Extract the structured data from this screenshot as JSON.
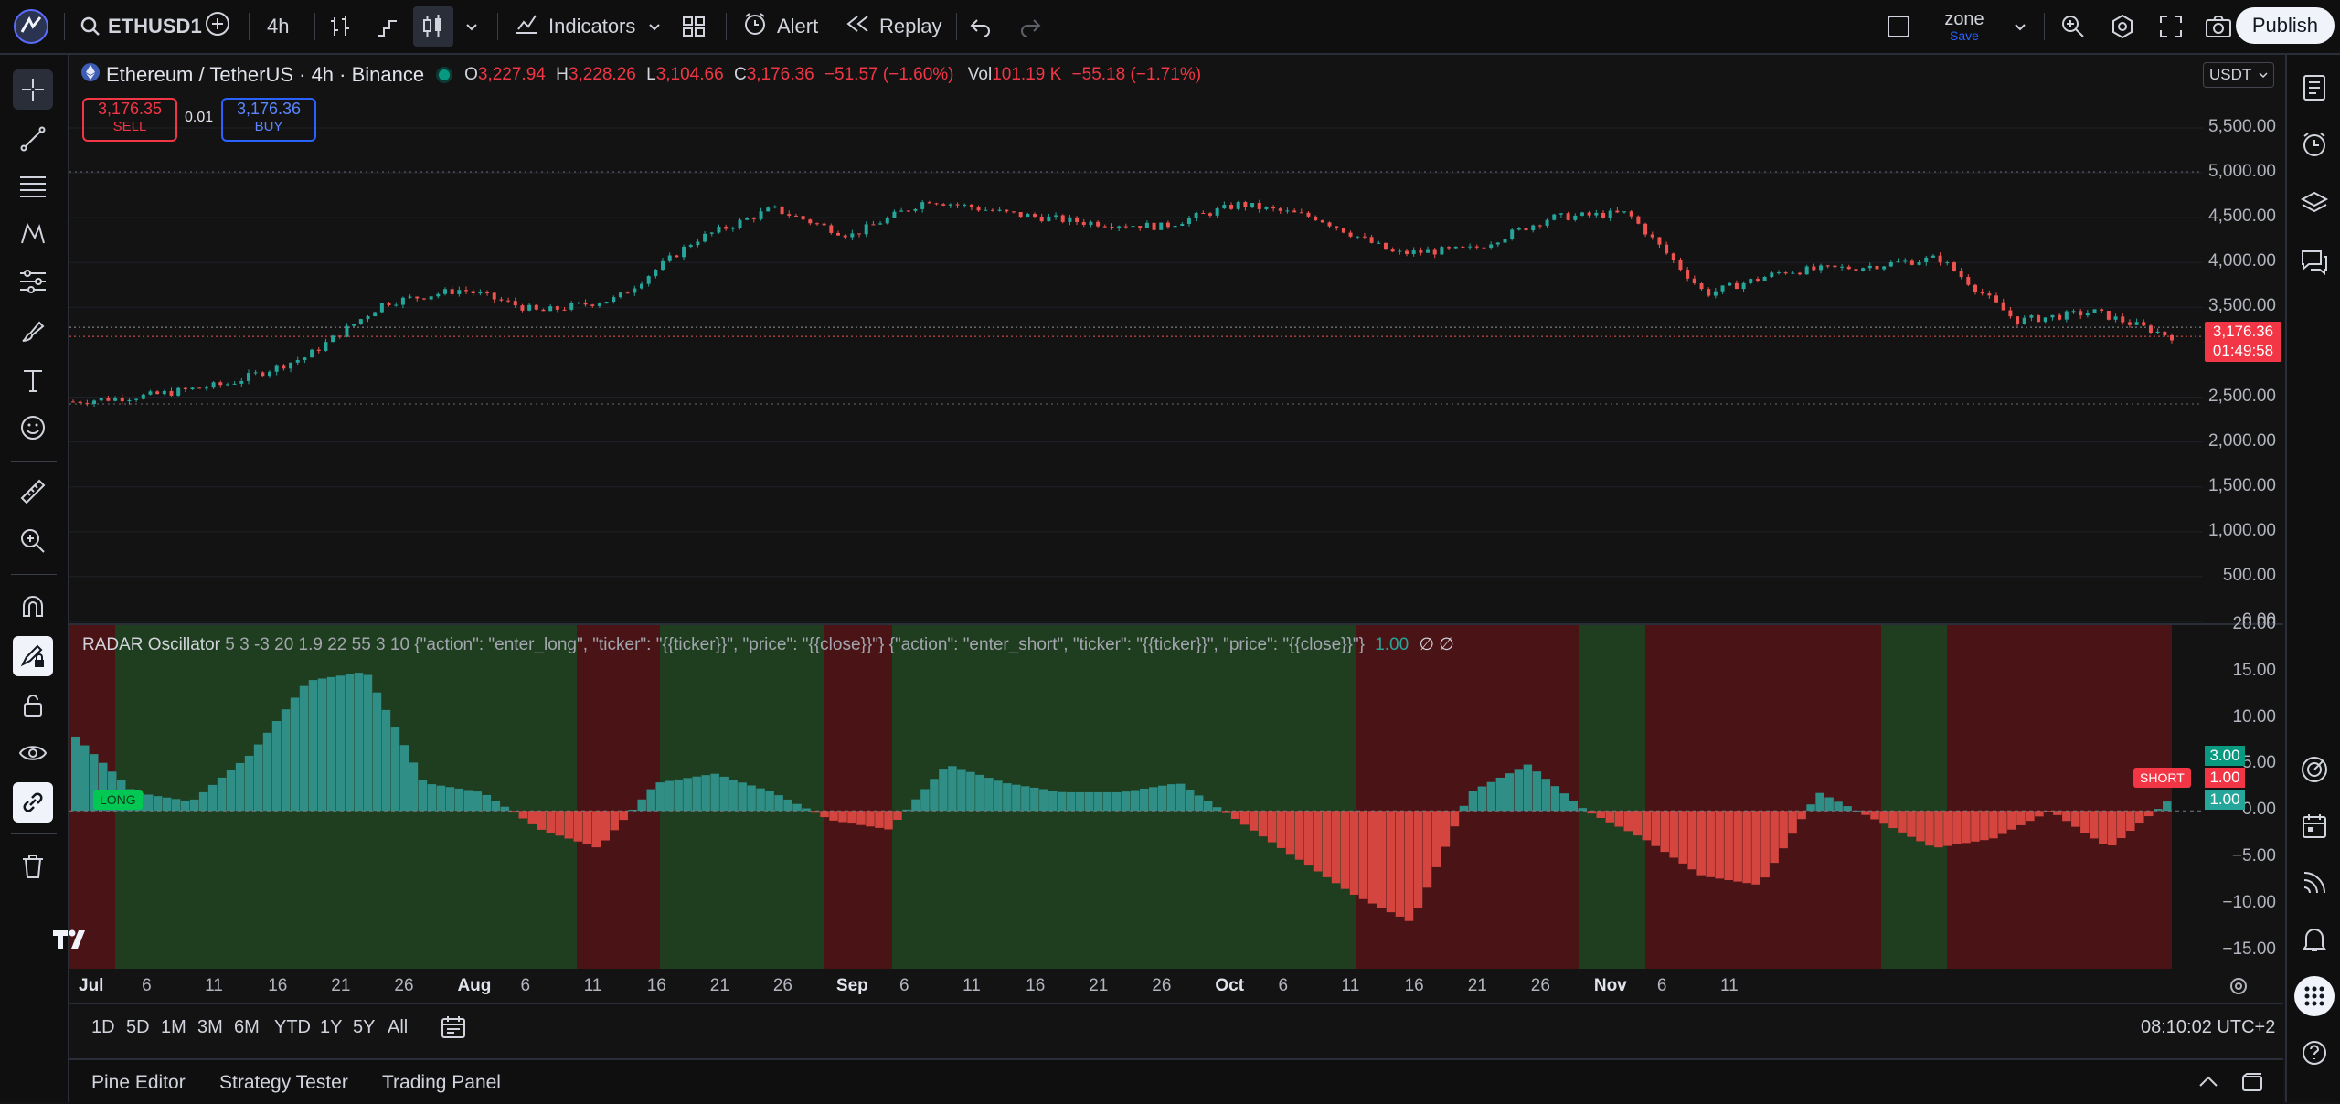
{
  "toolbar": {
    "symbol": "ETHUSD1",
    "interval": "4h",
    "indicators_label": "Indicators",
    "alert_label": "Alert",
    "replay_label": "Replay",
    "layout_name": "zone",
    "layout_status": "Save",
    "publish_label": "Publish"
  },
  "legend": {
    "title": "Ethereum / TetherUS · 4h · Binance",
    "o_label": "O",
    "o_value": "3,227.94",
    "h_label": "H",
    "h_value": "3,228.26",
    "l_label": "L",
    "l_value": "3,104.66",
    "c_label": "C",
    "c_value": "3,176.36",
    "change": "−51.57 (−1.60%)",
    "vol_label": "Vol",
    "vol_value": "101.19 K",
    "vol_change": "−55.18 (−1.71%)"
  },
  "trade": {
    "sell_price": "3,176.35",
    "sell_label": "SELL",
    "spread": "0.01",
    "buy_price": "3,176.36",
    "buy_label": "BUY"
  },
  "currency": "USDT",
  "price_axis": {
    "labels": [
      "5,500.00",
      "5,000.00",
      "4,500.00",
      "4,000.00",
      "3,500.00",
      "2,500.00",
      "2,000.00",
      "1,500.00",
      "1,000.00",
      "500.00",
      "0.00"
    ],
    "last_price": "3,176.36",
    "countdown": "01:49:58"
  },
  "oscillator": {
    "name": "RADAR Oscillator",
    "params": "5 3 -3 20 1.9 22 55 3 10 {\"action\": \"enter_long\", \"ticker\": \"{{ticker}}\", \"price\": \"{{close}}\"} {\"action\": \"enter_short\", \"ticker\": \"{{ticker}}\", \"price\": \"{{close}}\"}",
    "value": "1.00",
    "extra": "∅ ∅",
    "axis_labels": [
      "20.00",
      "15.00",
      "10.00",
      "5.00",
      "0.00",
      "−5.00",
      "−10.00",
      "−15.00"
    ],
    "tag_green": "3.00",
    "tag_red": "1.00",
    "tag_teal": "1.00",
    "long_label": "LONG",
    "short_label": "SHORT"
  },
  "time_axis": [
    "Jul",
    "6",
    "11",
    "16",
    "21",
    "26",
    "Aug",
    "6",
    "11",
    "16",
    "21",
    "26",
    "Sep",
    "6",
    "11",
    "16",
    "21",
    "26",
    "Oct",
    "6",
    "11",
    "16",
    "21",
    "26",
    "Nov",
    "6",
    "11"
  ],
  "ranges": [
    "1D",
    "5D",
    "1M",
    "3M",
    "6M",
    "YTD",
    "1Y",
    "5Y",
    "All"
  ],
  "clock": "08:10:02 UTC+2",
  "bottom_tabs": [
    "Pine Editor",
    "Strategy Tester",
    "Trading Panel"
  ],
  "colors": {
    "up": "#26a69a",
    "down": "#ef5350",
    "bg": "#131313",
    "bull_zone": "#1f3d1f",
    "bear_zone": "#4a1416",
    "sell": "#f23645",
    "buy": "#2962ff"
  },
  "chart_data": {
    "type": "line",
    "title": "Ethereum / TetherUS · 4h · Binance",
    "x": [
      "Jul 1",
      "Jul 6",
      "Jul 11",
      "Jul 16",
      "Jul 21",
      "Jul 26",
      "Aug 1",
      "Aug 6",
      "Aug 11",
      "Aug 16",
      "Aug 21",
      "Aug 26",
      "Sep 1",
      "Sep 6",
      "Sep 11",
      "Sep 16",
      "Sep 21",
      "Sep 26",
      "Oct 1",
      "Oct 6",
      "Oct 11",
      "Oct 16",
      "Oct 21",
      "Oct 26",
      "Nov 1",
      "Nov 6",
      "Nov 11",
      "Nov 15"
    ],
    "series": [
      {
        "values": [
          2450,
          2520,
          2650,
          2950,
          3550,
          3700,
          3450,
          3600,
          4250,
          4600,
          4300,
          4700,
          4550,
          4450,
          4400,
          4650,
          4500,
          4100,
          4150,
          4500,
          4550,
          3650,
          3900,
          3950,
          4050,
          3350,
          3450,
          3176
        ]
      }
    ],
    "ylim": [
      0,
      5800
    ],
    "oscillator": {
      "values": [
        8,
        2,
        1,
        6,
        14,
        15,
        3,
        2,
        -2,
        -4,
        3,
        4,
        2,
        -1,
        -2,
        5,
        3,
        2,
        2,
        3,
        -1,
        -5,
        -9,
        -12,
        2,
        5,
        0,
        -3,
        -7,
        -8,
        2,
        -1,
        -4,
        -3,
        0,
        -4,
        1
      ],
      "ylim": [
        -17,
        20
      ]
    }
  }
}
